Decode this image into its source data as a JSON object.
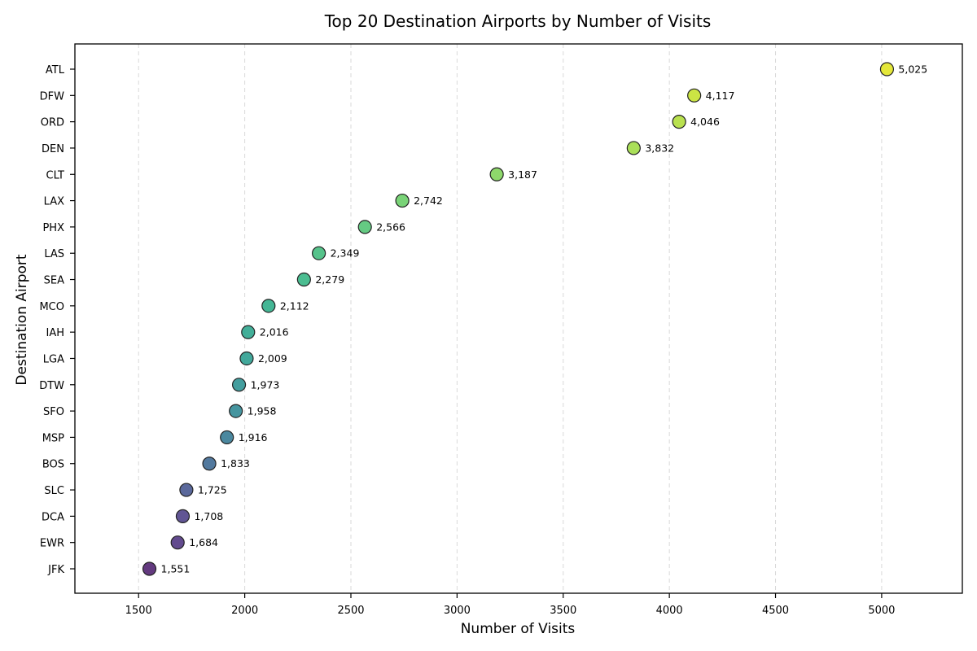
{
  "chart_data": {
    "type": "scatter",
    "title": "Top 20 Destination Airports by Number of Visits",
    "xlabel": "Number of Visits",
    "ylabel": "Destination Airport",
    "xlim": [
      1200,
      5380
    ],
    "xticks": [
      1500,
      2000,
      2500,
      3000,
      3500,
      4000,
      4500,
      5000
    ],
    "grid": "x-dashed",
    "categories": [
      "ATL",
      "DFW",
      "ORD",
      "DEN",
      "CLT",
      "LAX",
      "PHX",
      "LAS",
      "SEA",
      "MCO",
      "IAH",
      "LGA",
      "DTW",
      "SFO",
      "MSP",
      "BOS",
      "SLC",
      "DCA",
      "EWR",
      "JFK"
    ],
    "values": [
      5025,
      4117,
      4046,
      3832,
      3187,
      2742,
      2566,
      2349,
      2279,
      2112,
      2016,
      2009,
      1973,
      1958,
      1916,
      1833,
      1725,
      1708,
      1684,
      1551
    ],
    "data_labels": [
      "5,025",
      "4,117",
      "4,046",
      "3,832",
      "3,187",
      "2,742",
      "2,566",
      "2,349",
      "2,279",
      "2,112",
      "2,016",
      "2,009",
      "1,973",
      "1,958",
      "1,916",
      "1,833",
      "1,725",
      "1,708",
      "1,684",
      "1,551"
    ],
    "colors": [
      "#dfe318",
      "#c2df23",
      "#addc30",
      "#9bd93c",
      "#7ad151",
      "#62cb5f",
      "#4ac16d",
      "#38b977",
      "#2cb17e",
      "#23a983",
      "#22a187",
      "#21998a",
      "#228d8d",
      "#26828e",
      "#2c738e",
      "#34618d",
      "#3d4e8a",
      "#453781",
      "#472a7a",
      "#481769"
    ],
    "marker_edge_color": "#222222"
  }
}
